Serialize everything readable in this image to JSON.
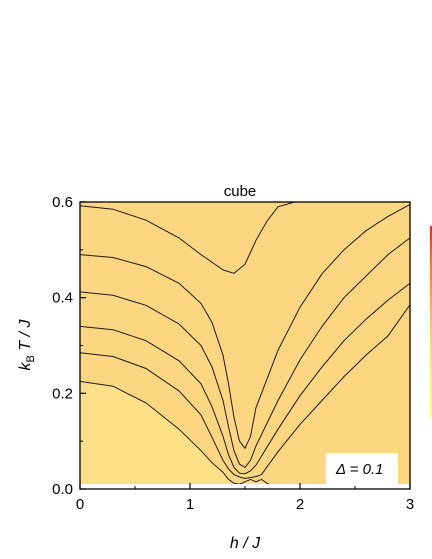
{
  "chart_data": {
    "type": "heatmap",
    "title": "cube",
    "xlabel": "h / J",
    "ylabel": "k_B T / J",
    "xlim": [
      0,
      3
    ],
    "ylim": [
      0,
      0.6
    ],
    "x_ticks": [
      "0",
      "1",
      "2",
      "3"
    ],
    "y_ticks": [
      "0.0",
      "0.2",
      "0.4",
      "0.6"
    ],
    "annotation": "Δ = 0.1",
    "colormap": [
      "#ffff80",
      "#fde088",
      "#fbb56e",
      "#f4773e",
      "#ec2a1a"
    ],
    "contours": [
      {
        "level": 1,
        "x": [
          0,
          0.3,
          0.6,
          0.9,
          1.1,
          1.3,
          1.4,
          1.5,
          1.6,
          1.7,
          1.8,
          2.1,
          2.4,
          2.7,
          2.9
        ],
        "y": [
          0.592,
          0.585,
          0.562,
          0.525,
          0.49,
          0.458,
          0.451,
          0.47,
          0.52,
          0.56,
          0.59,
          0.61,
          0.61,
          0.61,
          0.61
        ]
      },
      {
        "level": 2,
        "x": [
          0,
          0.3,
          0.6,
          0.9,
          1.1,
          1.2,
          1.3,
          1.35,
          1.4,
          1.45,
          1.5,
          1.55,
          1.6,
          1.8,
          2.0,
          2.2,
          2.4,
          2.6,
          2.8,
          3.0
        ],
        "y": [
          0.49,
          0.484,
          0.465,
          0.43,
          0.388,
          0.348,
          0.28,
          0.22,
          0.15,
          0.1,
          0.085,
          0.11,
          0.17,
          0.29,
          0.38,
          0.45,
          0.5,
          0.54,
          0.57,
          0.595
        ]
      },
      {
        "level": 3,
        "x": [
          0,
          0.3,
          0.6,
          0.9,
          1.1,
          1.2,
          1.3,
          1.35,
          1.4,
          1.45,
          1.5,
          1.55,
          1.6,
          1.8,
          2.0,
          2.2,
          2.4,
          2.6,
          2.8,
          3.0
        ],
        "y": [
          0.412,
          0.405,
          0.384,
          0.345,
          0.3,
          0.255,
          0.185,
          0.13,
          0.08,
          0.052,
          0.045,
          0.06,
          0.09,
          0.185,
          0.27,
          0.34,
          0.4,
          0.445,
          0.49,
          0.525
        ]
      },
      {
        "level": 4,
        "x": [
          0,
          0.3,
          0.6,
          0.9,
          1.1,
          1.2,
          1.3,
          1.35,
          1.4,
          1.45,
          1.5,
          1.55,
          1.6,
          1.8,
          2.0,
          2.2,
          2.4,
          2.6,
          2.8,
          3.0
        ],
        "y": [
          0.34,
          0.333,
          0.31,
          0.268,
          0.22,
          0.172,
          0.11,
          0.072,
          0.045,
          0.033,
          0.032,
          0.038,
          0.05,
          0.125,
          0.195,
          0.255,
          0.31,
          0.355,
          0.395,
          0.43
        ]
      },
      {
        "level": 5,
        "x": [
          0,
          0.3,
          0.6,
          0.9,
          1.1,
          1.2,
          1.3,
          1.35,
          1.4,
          1.45,
          1.5,
          1.55,
          1.6,
          1.65,
          1.8,
          2.0,
          2.2,
          2.4,
          2.6,
          2.8,
          3.0
        ],
        "y": [
          0.285,
          0.277,
          0.252,
          0.205,
          0.155,
          0.108,
          0.06,
          0.042,
          0.03,
          0.025,
          0.022,
          0.024,
          0.026,
          0.03,
          0.078,
          0.135,
          0.185,
          0.235,
          0.28,
          0.32,
          0.385
        ]
      },
      {
        "level": 6,
        "x": [
          0,
          0.3,
          0.6,
          0.9,
          1.1,
          1.2,
          1.3,
          1.35,
          1.4,
          1.45,
          1.5,
          1.55,
          1.6,
          1.65,
          1.7,
          1.8
        ],
        "y": [
          0.225,
          0.215,
          0.18,
          0.125,
          0.08,
          0.055,
          0.035,
          0.02,
          0.012,
          0.01,
          0.015,
          0.02,
          0.015,
          0.02,
          0.012,
          0.0
        ]
      }
    ]
  }
}
